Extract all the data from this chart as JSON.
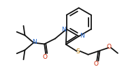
{
  "bg_color": "#ffffff",
  "line_color": "#111111",
  "lw": 1.3,
  "atoms": {
    "N1_label": "N",
    "N2_label": "N",
    "S_label": "S",
    "O_amide": "O",
    "N_amide": "N",
    "O_ester1": "O",
    "O_ester2": "O"
  },
  "colors": {
    "N": "#2266cc",
    "S": "#bb7700",
    "O": "#cc2200",
    "bond": "#111111"
  }
}
